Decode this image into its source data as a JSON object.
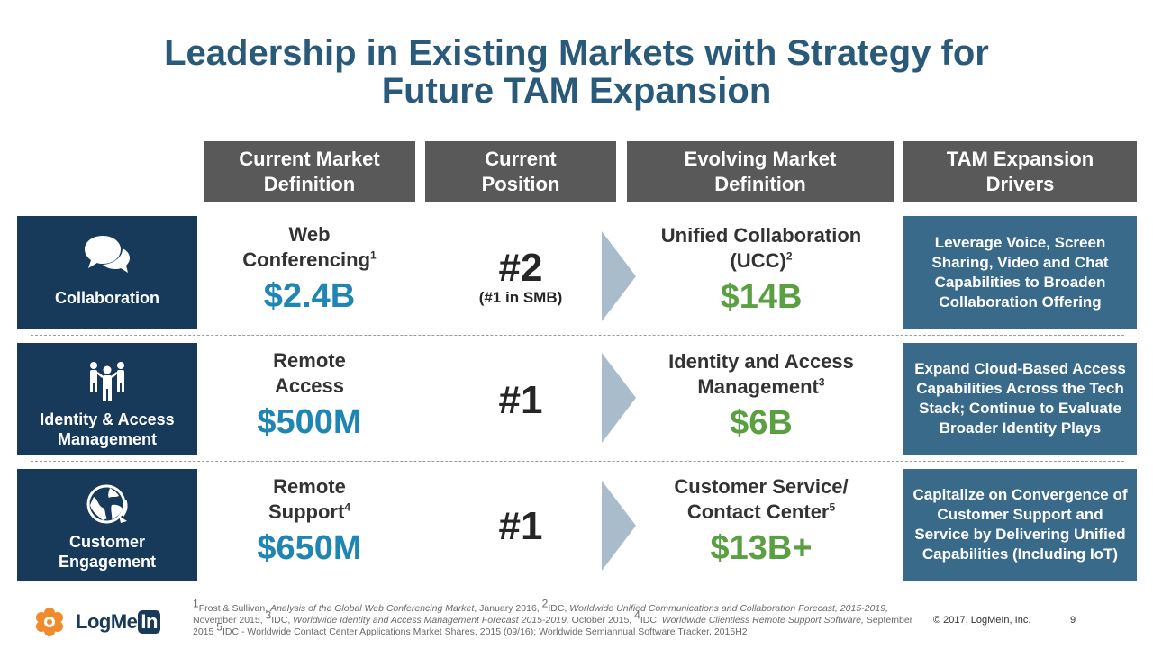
{
  "title": {
    "line1": "Leadership in Existing Markets with Strategy for",
    "line2": "Future TAM Expansion"
  },
  "headers": [
    {
      "line1": "Current Market",
      "line2": "Definition"
    },
    {
      "line1": "Current",
      "line2": "Position"
    },
    {
      "line1": "Evolving Market",
      "line2": "Definition"
    },
    {
      "line1": "TAM Expansion",
      "line2": "Drivers"
    }
  ],
  "rows": [
    {
      "label": {
        "line1": "Collaboration",
        "line2": ""
      },
      "icon": "chat-bubbles-icon",
      "current_market": {
        "line1": "Web",
        "line2": "Conferencing",
        "sup": "1",
        "value": "$2.4B"
      },
      "position": {
        "rank": "#2",
        "note": "(#1 in SMB)"
      },
      "evolving_market": {
        "line1": "Unified Collaboration",
        "line2": "(UCC)",
        "sup": "2",
        "value": "$14B"
      },
      "driver": "Leverage Voice, Screen Sharing, Video and Chat Capabilities to Broaden Collaboration Offering"
    },
    {
      "label": {
        "line1": "Identity & Access",
        "line2": "Management"
      },
      "icon": "people-group-icon",
      "current_market": {
        "line1": "Remote",
        "line2": "Access",
        "sup": "",
        "value": "$500M"
      },
      "position": {
        "rank": "#1",
        "note": ""
      },
      "evolving_market": {
        "line1": "Identity and Access",
        "line2": "Management",
        "sup": "3",
        "value": "$6B"
      },
      "driver": "Expand Cloud-Based Access Capabilities Across the Tech Stack; Continue to Evaluate Broader Identity Plays"
    },
    {
      "label": {
        "line1": "Customer",
        "line2": "Engagement"
      },
      "icon": "globe-arrow-icon",
      "current_market": {
        "line1": "Remote",
        "line2": "Support",
        "sup": "4",
        "value": "$650M"
      },
      "position": {
        "rank": "#1",
        "note": ""
      },
      "evolving_market": {
        "line1": "Customer Service/",
        "line2": "Contact Center",
        "sup": "5",
        "value": "$13B+"
      },
      "driver": "Capitalize on Convergence of Customer Support and Service by Delivering Unified Capabilities (Including IoT)"
    }
  ],
  "footnote": {
    "s1": "1",
    "t1": "Frost & Sullivan, ",
    "i1": "Analysis of the Global Web Conferencing Market",
    "t2": ", January 2016, ",
    "s2": "2",
    "t3": "IDC, ",
    "i2": "Worldwide Unified Communications and Collaboration Forecast, 2015-2019,",
    "t4": " November 2015, ",
    "s3": "3",
    "t5": "IDC, ",
    "i3": "Worldwide Identity and Access Management Forecast 2015-2019,",
    "t6": " October 2015, ",
    "s4": "4",
    "t7": "IDC, ",
    "i4": "Worldwide Clientless Remote Support Software,",
    "t8": " September 2015 ",
    "s5": "5",
    "t9": "IDC - Worldwide Contact Center Applications Market Shares, 2015 (09/16); Worldwide Semiannual Software Tracker, 2015H2"
  },
  "logo": {
    "text": "LogMe",
    "badge": "In",
    "icon": "logmein-flower-icon"
  },
  "copyright": "© 2017, LogMeIn, Inc.",
  "page_number": "9",
  "colors": {
    "title": "#2a5a7a",
    "header_bg": "#595959",
    "row_label_bg": "#173a5a",
    "driver_bg": "#3a6a8a",
    "current_value": "#1f86b4",
    "evolving_value": "#5aa043",
    "arrow": "#a9bccb"
  }
}
